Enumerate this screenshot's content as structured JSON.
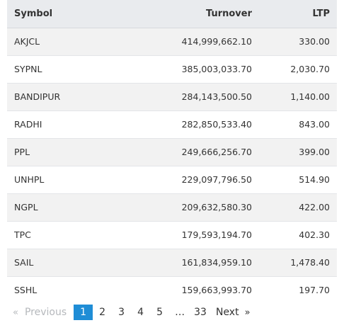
{
  "table": {
    "headers": {
      "symbol": "Symbol",
      "turnover": "Turnover",
      "ltp": "LTP"
    },
    "rows": [
      {
        "symbol": "AKJCL",
        "turnover": "414,999,662.10",
        "ltp": "330.00"
      },
      {
        "symbol": "SYPNL",
        "turnover": "385,003,033.70",
        "ltp": "2,030.70"
      },
      {
        "symbol": "BANDIPUR",
        "turnover": "284,143,500.50",
        "ltp": "1,140.00"
      },
      {
        "symbol": "RADHI",
        "turnover": "282,850,533.40",
        "ltp": "843.00"
      },
      {
        "symbol": "PPL",
        "turnover": "249,666,256.70",
        "ltp": "399.00"
      },
      {
        "symbol": "UNHPL",
        "turnover": "229,097,796.50",
        "ltp": "514.90"
      },
      {
        "symbol": "NGPL",
        "turnover": "209,632,580.30",
        "ltp": "422.00"
      },
      {
        "symbol": "TPC",
        "turnover": "179,593,194.70",
        "ltp": "402.30"
      },
      {
        "symbol": "SAIL",
        "turnover": "161,834,959.10",
        "ltp": "1,478.40"
      },
      {
        "symbol": "SSHL",
        "turnover": "159,663,993.70",
        "ltp": "197.70"
      }
    ]
  },
  "pagination": {
    "prev_icon": "«",
    "prev_label": "Previous",
    "pages": [
      "1",
      "2",
      "3",
      "4",
      "5"
    ],
    "active_page": "1",
    "ellipsis": "…",
    "last_page": "33",
    "next_label": "Next",
    "next_icon": "»",
    "colors": {
      "active_bg": "#1f8dd6",
      "disabled_text": "#b5b8bc"
    }
  }
}
